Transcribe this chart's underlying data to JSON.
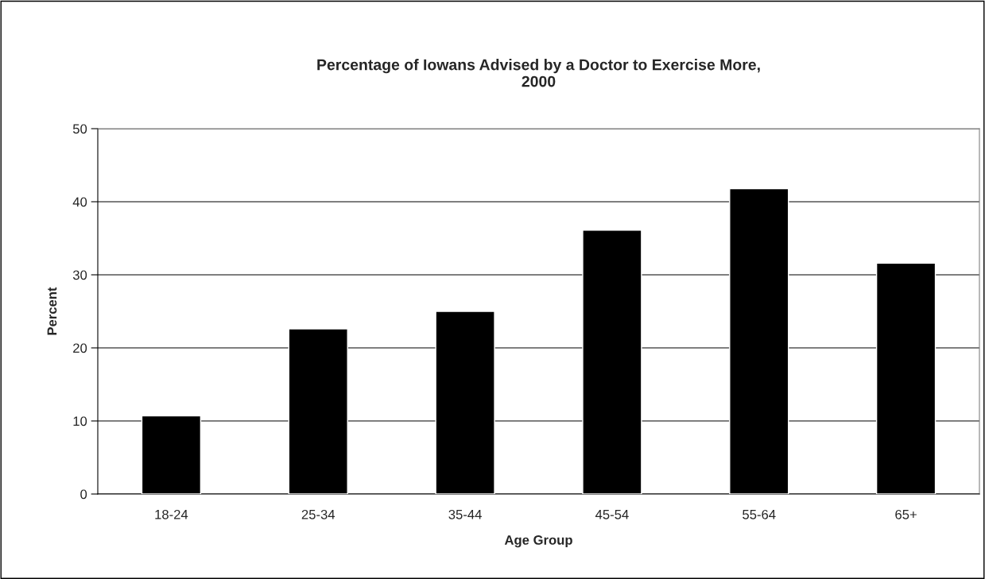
{
  "chart_data": {
    "type": "bar",
    "title": "Percentage of Iowans Advised by a Doctor to Exercise More,\n2000",
    "xlabel": "Age Group",
    "ylabel": "Percent",
    "categories": [
      "18-24",
      "25-34",
      "35-44",
      "45-54",
      "55-64",
      "65+"
    ],
    "values": [
      10.7,
      22.6,
      25.0,
      36.1,
      41.8,
      31.6
    ],
    "color": "#000000",
    "ylim": [
      0,
      50
    ],
    "yticks": [
      0,
      10,
      20,
      30,
      40,
      50
    ],
    "grid": "y"
  }
}
